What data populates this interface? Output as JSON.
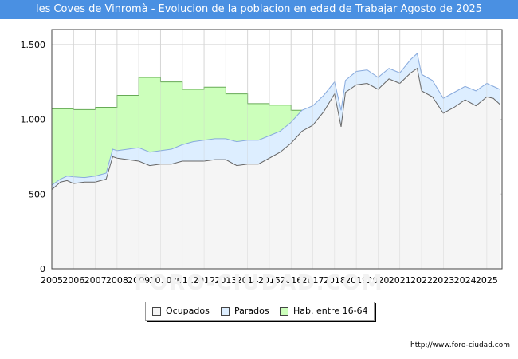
{
  "title": "les Coves de Vinromà - Evolucion de la poblacion en edad de Trabajar Agosto de 2025",
  "footer": "http://www.foro-ciudad.com",
  "watermark": "FORO-CIUDAD.COM",
  "colors": {
    "title_bg": "#4a90e2",
    "ocupados_fill": "#f5f5f5",
    "ocupados_line": "#666666",
    "parados_fill": "#ddeeff",
    "parados_line": "#88aadd",
    "hab_fill": "#ccffbb",
    "hab_line": "#66aa55"
  },
  "chart_data": {
    "type": "area",
    "title": "les Coves de Vinromà - Evolucion de la poblacion en edad de Trabajar Agosto de 2025",
    "xlabel": "",
    "ylabel": "",
    "xlim": [
      2005,
      2025.7
    ],
    "ylim": [
      0,
      1600
    ],
    "y_ticks": [
      0,
      500,
      1000,
      1500
    ],
    "y_tick_labels": [
      "0",
      "500",
      "1.000",
      "1.500"
    ],
    "x_tick_labels": [
      "2005",
      "2006",
      "2007",
      "2008",
      "2009",
      "2010",
      "2011",
      "2012",
      "2013",
      "2014",
      "2015",
      "2016",
      "2017",
      "2018",
      "2019",
      "2020",
      "2021",
      "2022",
      "2023",
      "2024",
      "2025"
    ],
    "grid": true,
    "legend_position": "bottom",
    "legend": [
      "Ocupados",
      "Parados",
      "Hab. entre 16-64"
    ],
    "series": [
      {
        "name": "Hab. entre 16-64",
        "type": "step",
        "x": [
          2005,
          2006,
          2007,
          2008,
          2009,
          2010,
          2011,
          2012,
          2013,
          2014,
          2015,
          2016,
          2017
        ],
        "values": [
          1070,
          1065,
          1080,
          1160,
          1280,
          1250,
          1200,
          1215,
          1170,
          1105,
          1095,
          1060,
          1060
        ]
      },
      {
        "name": "Parados",
        "x": [
          2005,
          2005.4,
          2005.7,
          2006,
          2006.5,
          2007,
          2007.5,
          2007.8,
          2008,
          2008.5,
          2009,
          2009.5,
          2010,
          2010.5,
          2011,
          2011.5,
          2012,
          2012.5,
          2013,
          2013.5,
          2014,
          2014.5,
          2015,
          2015.5,
          2016,
          2016.5,
          2017,
          2017.5,
          2018,
          2018.3,
          2018.5,
          2019,
          2019.5,
          2020,
          2020.5,
          2021,
          2021.5,
          2021.8,
          2022,
          2022.5,
          2023,
          2023.5,
          2024,
          2024.5,
          2025,
          2025.3,
          2025.6
        ],
        "values": [
          560,
          600,
          620,
          615,
          610,
          620,
          640,
          800,
          790,
          800,
          810,
          780,
          790,
          800,
          830,
          850,
          860,
          870,
          870,
          850,
          860,
          860,
          890,
          920,
          980,
          1060,
          1090,
          1160,
          1250,
          1060,
          1260,
          1320,
          1330,
          1280,
          1340,
          1310,
          1400,
          1440,
          1300,
          1260,
          1140,
          1180,
          1220,
          1190,
          1240,
          1220,
          1200
        ]
      },
      {
        "name": "Ocupados",
        "x": [
          2005,
          2005.4,
          2005.7,
          2006,
          2006.5,
          2007,
          2007.5,
          2007.8,
          2008,
          2008.5,
          2009,
          2009.5,
          2010,
          2010.5,
          2011,
          2011.5,
          2012,
          2012.5,
          2013,
          2013.5,
          2014,
          2014.5,
          2015,
          2015.5,
          2016,
          2016.5,
          2017,
          2017.5,
          2018,
          2018.3,
          2018.5,
          2019,
          2019.5,
          2020,
          2020.5,
          2021,
          2021.5,
          2021.8,
          2022,
          2022.5,
          2023,
          2023.5,
          2024,
          2024.5,
          2025,
          2025.3,
          2025.6
        ],
        "values": [
          530,
          580,
          590,
          570,
          580,
          580,
          600,
          750,
          740,
          730,
          720,
          690,
          700,
          700,
          720,
          720,
          720,
          730,
          730,
          690,
          700,
          700,
          740,
          780,
          840,
          920,
          960,
          1050,
          1170,
          950,
          1180,
          1230,
          1240,
          1200,
          1270,
          1240,
          1310,
          1340,
          1190,
          1150,
          1040,
          1080,
          1130,
          1090,
          1150,
          1140,
          1100
        ]
      }
    ]
  }
}
